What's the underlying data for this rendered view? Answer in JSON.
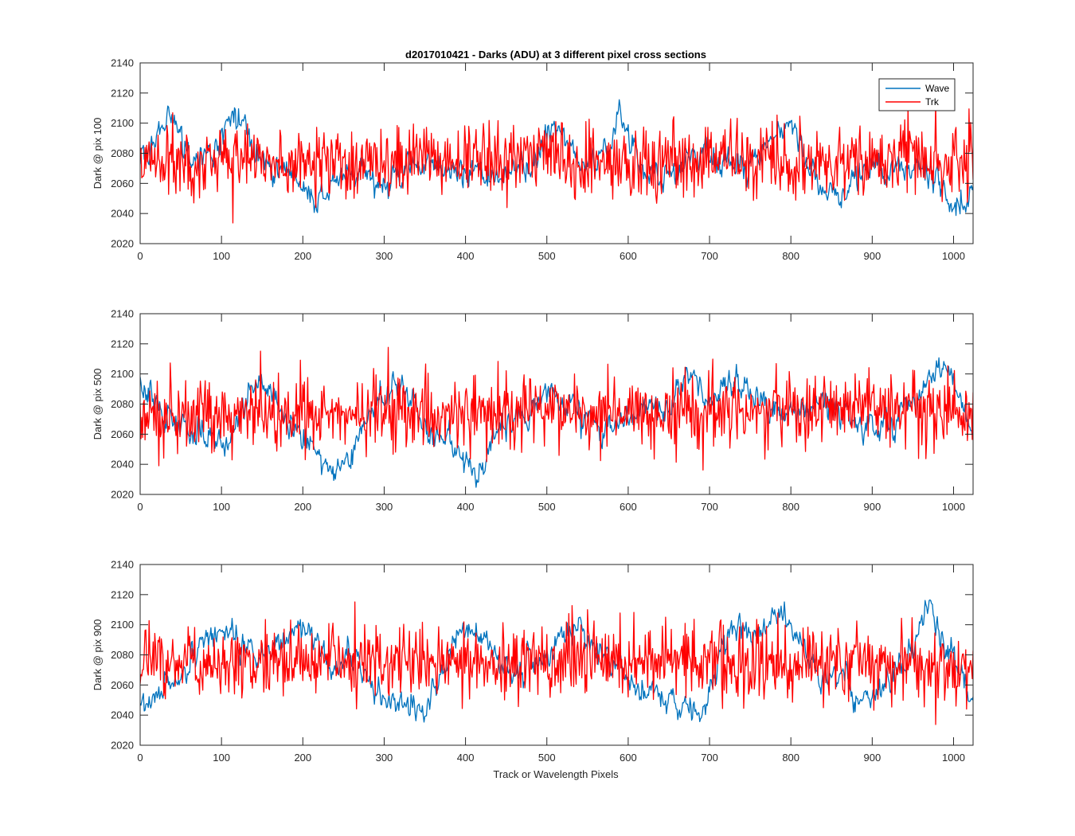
{
  "figure": {
    "title": "d2017010421 - Darks (ADU) at 3 different pixel cross sections",
    "xlabel": "Track or Wavelength Pixels"
  },
  "chart_data": [
    {
      "type": "line",
      "ylabel": "Dark @ pix 100",
      "xlim": [
        0,
        1024
      ],
      "ylim": [
        2020,
        2140
      ],
      "xticks": [
        0,
        100,
        200,
        300,
        400,
        500,
        600,
        700,
        800,
        900,
        1000
      ],
      "yticks": [
        2020,
        2040,
        2060,
        2080,
        2100,
        2120,
        2140
      ],
      "legend": {
        "location": "top-right",
        "entries": [
          "Wave",
          "Trk"
        ]
      },
      "series": [
        {
          "name": "Wave",
          "color": "#0072BD",
          "x": [
            0,
            10,
            20,
            30,
            40,
            50,
            60,
            80,
            100,
            120,
            130,
            140,
            160,
            180,
            200,
            220,
            240,
            260,
            280,
            300,
            320,
            340,
            360,
            380,
            400,
            420,
            440,
            460,
            480,
            500,
            510,
            520,
            540,
            560,
            580,
            590,
            600,
            620,
            640,
            660,
            680,
            700,
            720,
            740,
            760,
            780,
            800,
            820,
            840,
            860,
            880,
            900,
            920,
            940,
            960,
            980,
            1000,
            1024
          ],
          "mean": [
            2070,
            2080,
            2092,
            2102,
            2100,
            2090,
            2080,
            2076,
            2092,
            2105,
            2100,
            2080,
            2072,
            2070,
            2058,
            2048,
            2060,
            2070,
            2066,
            2058,
            2066,
            2074,
            2070,
            2068,
            2070,
            2066,
            2066,
            2070,
            2072,
            2088,
            2100,
            2090,
            2074,
            2070,
            2082,
            2108,
            2090,
            2072,
            2066,
            2070,
            2080,
            2078,
            2072,
            2070,
            2078,
            2090,
            2100,
            2072,
            2060,
            2050,
            2064,
            2070,
            2068,
            2072,
            2074,
            2062,
            2042,
            2050
          ]
        },
        {
          "name": "Trk",
          "color": "#FF0000",
          "x": [
            0,
            1024
          ],
          "mean": [
            2075,
            2075
          ],
          "spread": 22
        }
      ]
    },
    {
      "type": "line",
      "ylabel": "Dark @ pix 500",
      "xlim": [
        0,
        1024
      ],
      "ylim": [
        2020,
        2140
      ],
      "xticks": [
        0,
        100,
        200,
        300,
        400,
        500,
        600,
        700,
        800,
        900,
        1000
      ],
      "yticks": [
        2020,
        2040,
        2060,
        2080,
        2100,
        2120,
        2140
      ],
      "series": [
        {
          "name": "Wave",
          "color": "#0072BD",
          "x": [
            0,
            20,
            40,
            60,
            80,
            100,
            120,
            140,
            160,
            180,
            200,
            220,
            240,
            260,
            280,
            300,
            320,
            340,
            360,
            380,
            400,
            420,
            440,
            460,
            480,
            500,
            520,
            540,
            560,
            580,
            600,
            620,
            640,
            660,
            680,
            700,
            720,
            740,
            760,
            780,
            800,
            820,
            840,
            860,
            880,
            900,
            920,
            940,
            960,
            980,
            990,
            1000,
            1024
          ],
          "mean": [
            2095,
            2080,
            2068,
            2064,
            2060,
            2052,
            2068,
            2096,
            2090,
            2074,
            2058,
            2044,
            2036,
            2046,
            2070,
            2088,
            2092,
            2074,
            2058,
            2056,
            2040,
            2036,
            2060,
            2070,
            2074,
            2086,
            2082,
            2070,
            2066,
            2064,
            2068,
            2074,
            2072,
            2090,
            2100,
            2080,
            2096,
            2090,
            2086,
            2076,
            2074,
            2080,
            2078,
            2072,
            2068,
            2060,
            2064,
            2076,
            2088,
            2100,
            2112,
            2098,
            2064
          ]
        },
        {
          "name": "Trk",
          "color": "#FF0000",
          "x": [
            0,
            1024
          ],
          "mean": [
            2075,
            2075
          ],
          "spread": 22
        }
      ]
    },
    {
      "type": "line",
      "ylabel": "Dark @ pix 900",
      "xlim": [
        0,
        1024
      ],
      "ylim": [
        2020,
        2140
      ],
      "xticks": [
        0,
        100,
        200,
        300,
        400,
        500,
        600,
        700,
        800,
        900,
        1000
      ],
      "yticks": [
        2020,
        2040,
        2060,
        2080,
        2100,
        2120,
        2140
      ],
      "series": [
        {
          "name": "Wave",
          "color": "#0072BD",
          "x": [
            0,
            10,
            20,
            40,
            60,
            80,
            100,
            120,
            140,
            160,
            180,
            200,
            220,
            240,
            260,
            280,
            300,
            320,
            340,
            360,
            380,
            400,
            420,
            440,
            460,
            480,
            500,
            520,
            540,
            560,
            580,
            600,
            620,
            640,
            660,
            680,
            690,
            700,
            720,
            740,
            760,
            780,
            800,
            820,
            840,
            860,
            880,
            900,
            920,
            940,
            960,
            970,
            980,
            1000,
            1024
          ],
          "mean": [
            2048,
            2044,
            2056,
            2062,
            2076,
            2090,
            2100,
            2090,
            2078,
            2082,
            2092,
            2102,
            2086,
            2070,
            2080,
            2060,
            2050,
            2046,
            2038,
            2052,
            2080,
            2098,
            2094,
            2080,
            2066,
            2076,
            2080,
            2092,
            2096,
            2086,
            2072,
            2062,
            2056,
            2054,
            2048,
            2046,
            2036,
            2060,
            2092,
            2100,
            2094,
            2106,
            2100,
            2080,
            2066,
            2062,
            2056,
            2052,
            2062,
            2074,
            2102,
            2114,
            2098,
            2076,
            2048
          ]
        },
        {
          "name": "Trk",
          "color": "#FF0000",
          "x": [
            0,
            1024
          ],
          "mean": [
            2075,
            2075
          ],
          "spread": 22
        }
      ]
    }
  ]
}
